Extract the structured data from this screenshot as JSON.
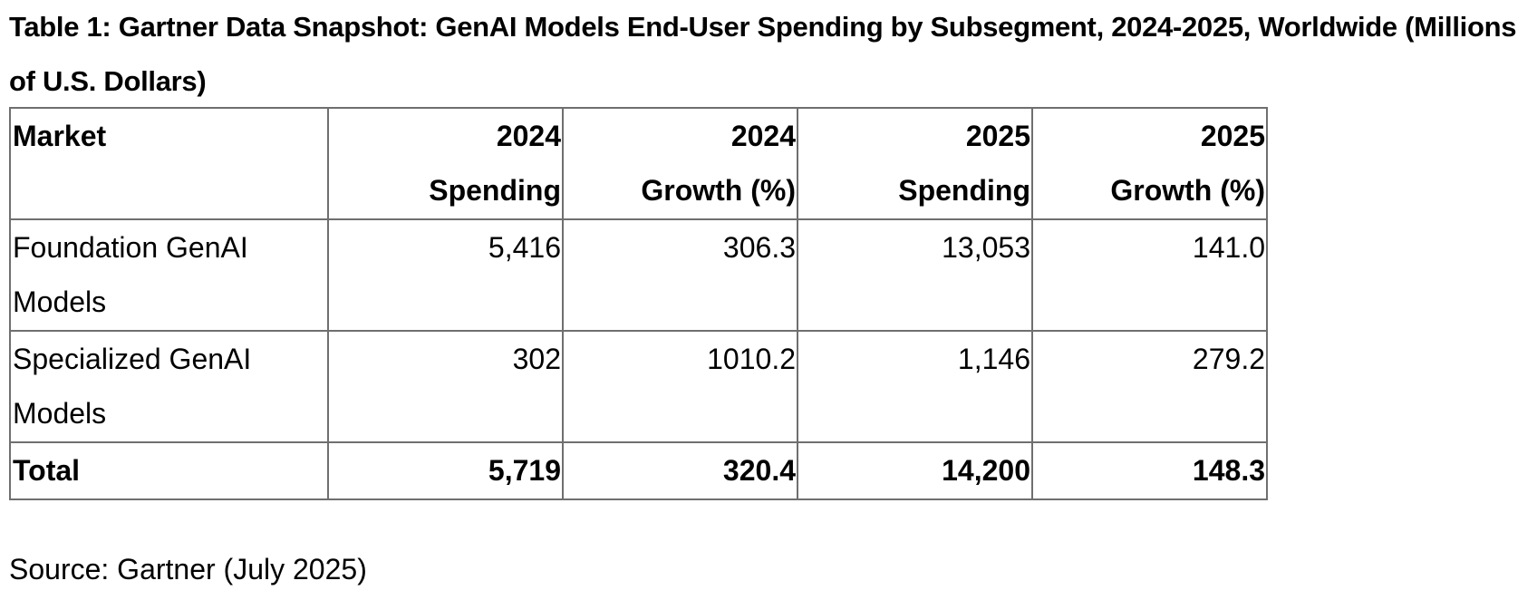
{
  "title": "Table 1: Gartner Data Snapshot: GenAI Models End-User Spending by Subsegment, 2024-2025, Worldwide (Millions of U.S. Dollars)",
  "table": {
    "headers": [
      {
        "line1": "Market",
        "line2": ""
      },
      {
        "line1": "2024",
        "line2": "Spending"
      },
      {
        "line1": "2024",
        "line2": "Growth (%)"
      },
      {
        "line1": "2025",
        "line2": "Spending"
      },
      {
        "line1": "2025",
        "line2": "Growth (%)"
      }
    ],
    "rows": [
      {
        "market_line1": "Foundation GenAI",
        "market_line2": "Models",
        "spending_2024": "5,416",
        "growth_2024": "306.3",
        "spending_2025": "13,053",
        "growth_2025": "141.0"
      },
      {
        "market_line1": "Specialized GenAI",
        "market_line2": "Models",
        "spending_2024": "302",
        "growth_2024": "1010.2",
        "spending_2025": "1,146",
        "growth_2025": "279.2"
      }
    ],
    "total": {
      "market": "Total",
      "spending_2024": "5,719",
      "growth_2024": "320.4",
      "spending_2025": "14,200",
      "growth_2025": "148.3"
    }
  },
  "source": "Source: Gartner (July 2025)"
}
